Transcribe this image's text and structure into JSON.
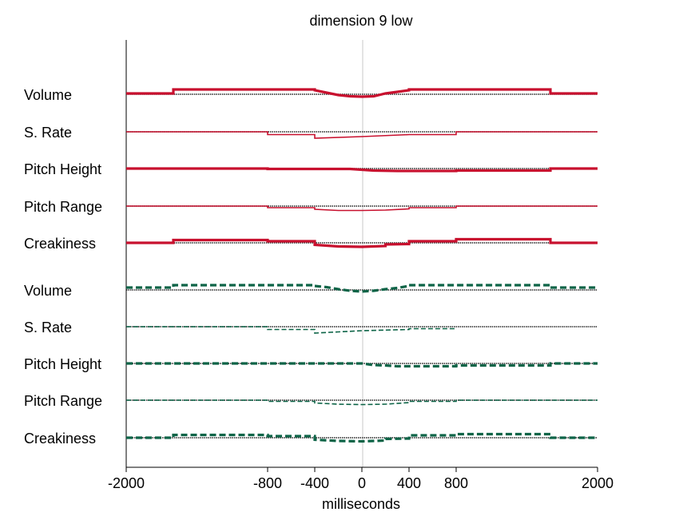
{
  "chart_data": {
    "type": "line",
    "title": "dimension  9 low",
    "xlabel": "milliseconds",
    "ylabel": "",
    "xlim": [
      -2000,
      2000
    ],
    "xticks": [
      -2000,
      -800,
      -400,
      0,
      400,
      800,
      2000
    ],
    "grid": false,
    "zero_line": true,
    "groups": [
      {
        "color": "#c8102e",
        "style": "solid",
        "series": [
          {
            "name": "Volume",
            "x": [
              -2000,
              -1600,
              -1600,
              -400,
              -400,
              -300,
              -200,
              -100,
              0,
              100,
              200,
              300,
              400,
              400,
              800,
              800,
              1600,
              1600,
              2000
            ],
            "y": [
              0.2,
              0.2,
              1.2,
              1.2,
              1.0,
              0.4,
              -0.2,
              -0.5,
              -0.6,
              -0.5,
              0.2,
              0.6,
              1.0,
              1.2,
              1.2,
              1.2,
              1.2,
              0.2,
              0.2
            ],
            "weight": "thick"
          },
          {
            "name": "S. Rate",
            "x": [
              -2000,
              -800,
              -800,
              -400,
              -400,
              0,
              400,
              400,
              800,
              800,
              2000
            ],
            "y": [
              0,
              0,
              -0.7,
              -0.7,
              -1.6,
              -1.2,
              -0.7,
              -0.7,
              -0.7,
              0,
              0
            ],
            "weight": "thin"
          },
          {
            "name": "Pitch Height",
            "x": [
              -2000,
              -800,
              -800,
              -100,
              0,
              100,
              300,
              400,
              800,
              800,
              1600,
              1600,
              2000
            ],
            "y": [
              0,
              0,
              -0.1,
              -0.1,
              -0.3,
              -0.5,
              -0.6,
              -0.6,
              -0.6,
              -0.5,
              -0.5,
              0,
              0
            ],
            "weight": "thick"
          },
          {
            "name": "Pitch Range",
            "x": [
              -2000,
              -800,
              -800,
              -400,
              -400,
              -200,
              0,
              200,
              400,
              400,
              800,
              800,
              2000
            ],
            "y": [
              0,
              0,
              -0.4,
              -0.4,
              -0.8,
              -1.1,
              -1.1,
              -1.0,
              -0.7,
              -0.4,
              -0.4,
              0,
              0
            ],
            "weight": "thin"
          },
          {
            "name": "Creakiness",
            "x": [
              -2000,
              -1600,
              -1600,
              -800,
              -800,
              -400,
              -400,
              -200,
              0,
              200,
              200,
              400,
              400,
              800,
              800,
              1600,
              1600,
              2000
            ],
            "y": [
              0,
              0,
              0.7,
              0.7,
              0.4,
              0.4,
              -0.5,
              -0.9,
              -1.0,
              -0.8,
              -0.4,
              -0.3,
              0.4,
              0.4,
              0.9,
              0.9,
              0,
              0
            ],
            "weight": "thick"
          }
        ]
      },
      {
        "color": "#0d6447",
        "style": "dashed",
        "series": [
          {
            "name": "Volume",
            "x": [
              -2000,
              -1600,
              -1600,
              -400,
              -400,
              -300,
              -200,
              -100,
              0,
              100,
              200,
              300,
              400,
              400,
              800,
              800,
              1600,
              1600,
              2000
            ],
            "y": [
              0.6,
              0.6,
              1.2,
              1.2,
              1.0,
              0.7,
              0.2,
              -0.2,
              -0.4,
              -0.2,
              0.2,
              0.5,
              1.0,
              1.2,
              1.2,
              1.2,
              1.2,
              0.6,
              0.6
            ],
            "weight": "thick"
          },
          {
            "name": "S. Rate",
            "x": [
              -2000,
              -800,
              -800,
              -400,
              -400,
              0,
              400,
              400,
              800
            ],
            "y": [
              0,
              0,
              -0.7,
              -0.7,
              -1.6,
              -1.0,
              -0.7,
              -0.5,
              -0.5
            ],
            "weight": "thin"
          },
          {
            "name": "Pitch Height",
            "x": [
              -2000,
              -800,
              -800,
              0,
              100,
              200,
              300,
              400,
              800,
              800,
              1600,
              1600,
              2000
            ],
            "y": [
              0,
              0,
              0,
              0,
              -0.4,
              -0.5,
              -0.7,
              -0.7,
              -0.7,
              -0.5,
              -0.5,
              0,
              0
            ],
            "weight": "thick"
          },
          {
            "name": "Pitch Range",
            "x": [
              -2000,
              -800,
              -800,
              -400,
              -400,
              -200,
              0,
              200,
              400,
              400,
              800,
              800,
              2000
            ],
            "y": [
              0,
              0,
              -0.3,
              -0.3,
              -0.7,
              -1.0,
              -1.1,
              -1.0,
              -0.6,
              -0.3,
              -0.3,
              0,
              0
            ],
            "weight": "thin"
          },
          {
            "name": "Creakiness",
            "x": [
              -2000,
              -1600,
              -1600,
              -800,
              -800,
              -400,
              -400,
              -200,
              0,
              200,
              200,
              400,
              400,
              800,
              800,
              1600,
              1600,
              2000
            ],
            "y": [
              0,
              0,
              0.7,
              0.7,
              0.4,
              0.4,
              -0.5,
              -0.8,
              -0.9,
              -0.7,
              -0.3,
              -0.2,
              0.6,
              0.6,
              0.9,
              0.9,
              0,
              0
            ],
            "weight": "thick"
          }
        ]
      }
    ]
  }
}
